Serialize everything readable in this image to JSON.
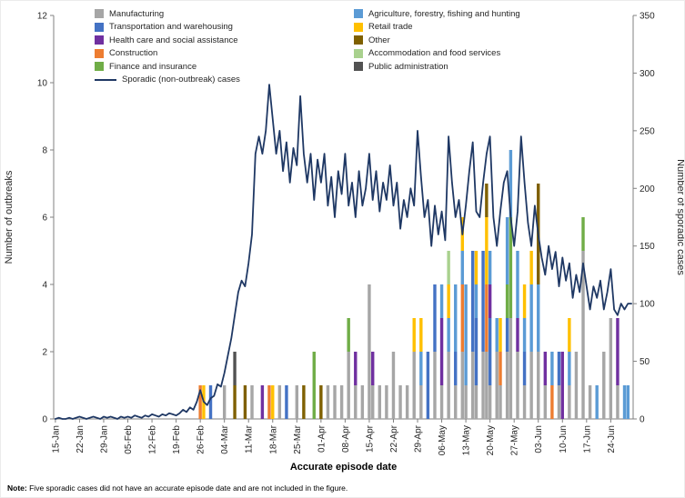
{
  "note": {
    "label": "Note:",
    "text": "Five sporadic cases did not have an accurate episode date and are not included in the figure."
  },
  "chart_data": {
    "type": "combo-stacked-bar-line",
    "title": "",
    "xlabel": "Accurate episode date",
    "ylabel_left": "Number of outbreaks",
    "ylabel_right": "Number of sporadic cases",
    "ylim_left": [
      0,
      12
    ],
    "ylim_right": [
      0,
      350
    ],
    "yticks_left": [
      0,
      2,
      4,
      6,
      8,
      10,
      12
    ],
    "yticks_right": [
      0,
      50,
      100,
      150,
      200,
      250,
      300,
      350
    ],
    "grid": false,
    "legend_position": "top",
    "x_start": "15-Jan",
    "n_days": 168,
    "xtick_interval_days": 7,
    "xtick_labels": [
      "15-Jan",
      "22-Jan",
      "29-Jan",
      "05-Feb",
      "12-Feb",
      "19-Feb",
      "26-Feb",
      "04-Mar",
      "11-Mar",
      "18-Mar",
      "25-Mar",
      "01-Apr",
      "08-Apr",
      "15-Apr",
      "22-Apr",
      "29-Apr",
      "06-May",
      "13-May",
      "20-May",
      "27-May",
      "03-Jun",
      "10-Jun",
      "17-Jun",
      "24-Jun"
    ],
    "sectors": [
      {
        "name": "Manufacturing",
        "color": "#a6a6a6"
      },
      {
        "name": "Transportation and warehousing",
        "color": "#4472c4"
      },
      {
        "name": "Health care and social assistance",
        "color": "#7030a0"
      },
      {
        "name": "Construction",
        "color": "#ed7d31"
      },
      {
        "name": "Finance and insurance",
        "color": "#70ad47"
      },
      {
        "name": "Agriculture, forestry, fishing and hunting",
        "color": "#5b9bd5"
      },
      {
        "name": "Retail trade",
        "color": "#ffc000"
      },
      {
        "name": "Other",
        "color": "#7f6000"
      },
      {
        "name": "Accommodation and food services",
        "color": "#a9d18e"
      },
      {
        "name": "Public administration",
        "color": "#525252"
      }
    ],
    "line": {
      "name": "Sporadic (non-outbreak) cases",
      "color": "#1f3864",
      "values": [
        0,
        1,
        0,
        0,
        1,
        0,
        1,
        2,
        1,
        0,
        1,
        2,
        1,
        0,
        2,
        1,
        2,
        1,
        0,
        2,
        1,
        2,
        1,
        3,
        2,
        1,
        3,
        2,
        4,
        3,
        2,
        4,
        3,
        5,
        4,
        3,
        5,
        8,
        6,
        10,
        8,
        15,
        25,
        15,
        12,
        18,
        20,
        30,
        28,
        40,
        55,
        70,
        90,
        110,
        120,
        115,
        135,
        160,
        230,
        245,
        230,
        250,
        290,
        260,
        230,
        250,
        215,
        240,
        205,
        235,
        220,
        280,
        230,
        205,
        230,
        190,
        225,
        205,
        230,
        185,
        210,
        175,
        215,
        195,
        230,
        185,
        205,
        175,
        215,
        185,
        200,
        230,
        190,
        215,
        180,
        205,
        190,
        220,
        185,
        205,
        165,
        190,
        175,
        200,
        185,
        250,
        210,
        175,
        190,
        150,
        185,
        160,
        180,
        155,
        245,
        205,
        175,
        190,
        160,
        185,
        215,
        240,
        180,
        175,
        205,
        230,
        245,
        175,
        150,
        180,
        205,
        215,
        175,
        150,
        180,
        245,
        205,
        170,
        150,
        185,
        160,
        140,
        125,
        150,
        130,
        145,
        115,
        140,
        120,
        135,
        105,
        125,
        110,
        135,
        115,
        95,
        115,
        105,
        120,
        95,
        110,
        130,
        95,
        90,
        100,
        95,
        100,
        100
      ]
    },
    "bars": [
      {
        "day": 42,
        "stack": {
          "Construction": 1
        }
      },
      {
        "day": 43,
        "stack": {
          "Retail trade": 1
        }
      },
      {
        "day": 45,
        "stack": {
          "Transportation and warehousing": 1
        }
      },
      {
        "day": 49,
        "stack": {
          "Manufacturing": 1
        }
      },
      {
        "day": 52,
        "stack": {
          "Other": 1,
          "Public administration": 1
        }
      },
      {
        "day": 55,
        "stack": {
          "Other": 1
        }
      },
      {
        "day": 57,
        "stack": {
          "Manufacturing": 1
        }
      },
      {
        "day": 60,
        "stack": {
          "Health care and social assistance": 1
        }
      },
      {
        "day": 62,
        "stack": {
          "Construction": 1
        }
      },
      {
        "day": 63,
        "stack": {
          "Retail trade": 1
        }
      },
      {
        "day": 65,
        "stack": {
          "Manufacturing": 1
        }
      },
      {
        "day": 67,
        "stack": {
          "Transportation and warehousing": 1
        }
      },
      {
        "day": 70,
        "stack": {
          "Manufacturing": 1
        }
      },
      {
        "day": 72,
        "stack": {
          "Other": 1
        }
      },
      {
        "day": 75,
        "stack": {
          "Finance and insurance": 2
        }
      },
      {
        "day": 77,
        "stack": {
          "Other": 1
        }
      },
      {
        "day": 79,
        "stack": {
          "Manufacturing": 1
        }
      },
      {
        "day": 81,
        "stack": {
          "Manufacturing": 1
        }
      },
      {
        "day": 83,
        "stack": {
          "Manufacturing": 1
        }
      },
      {
        "day": 85,
        "stack": {
          "Manufacturing": 2,
          "Finance and insurance": 1
        }
      },
      {
        "day": 87,
        "stack": {
          "Manufacturing": 1,
          "Health care and social assistance": 1
        }
      },
      {
        "day": 89,
        "stack": {
          "Manufacturing": 1
        }
      },
      {
        "day": 91,
        "stack": {
          "Manufacturing": 4
        }
      },
      {
        "day": 92,
        "stack": {
          "Manufacturing": 1,
          "Health care and social assistance": 1
        }
      },
      {
        "day": 94,
        "stack": {
          "Manufacturing": 1
        }
      },
      {
        "day": 96,
        "stack": {
          "Manufacturing": 1
        }
      },
      {
        "day": 98,
        "stack": {
          "Manufacturing": 2
        }
      },
      {
        "day": 100,
        "stack": {
          "Manufacturing": 1
        }
      },
      {
        "day": 102,
        "stack": {
          "Manufacturing": 1
        }
      },
      {
        "day": 104,
        "stack": {
          "Manufacturing": 2,
          "Retail trade": 1
        }
      },
      {
        "day": 106,
        "stack": {
          "Manufacturing": 1,
          "Agriculture, forestry, fishing and hunting": 1,
          "Retail trade": 1
        }
      },
      {
        "day": 108,
        "stack": {
          "Transportation and warehousing": 2
        }
      },
      {
        "day": 110,
        "stack": {
          "Manufacturing": 2,
          "Transportation and warehousing": 2
        }
      },
      {
        "day": 112,
        "stack": {
          "Manufacturing": 1,
          "Health care and social assistance": 2,
          "Agriculture, forestry, fishing and hunting": 1
        }
      },
      {
        "day": 114,
        "stack": {
          "Manufacturing": 2,
          "Agriculture, forestry, fishing and hunting": 1,
          "Retail trade": 1,
          "Accommodation and food services": 1
        }
      },
      {
        "day": 116,
        "stack": {
          "Manufacturing": 1,
          "Transportation and warehousing": 1,
          "Agriculture, forestry, fishing and hunting": 2
        }
      },
      {
        "day": 118,
        "stack": {
          "Manufacturing": 2,
          "Construction": 2,
          "Agriculture, forestry, fishing and hunting": 1,
          "Retail trade": 1
        }
      },
      {
        "day": 119,
        "stack": {
          "Manufacturing": 1,
          "Agriculture, forestry, fishing and hunting": 3
        }
      },
      {
        "day": 121,
        "stack": {
          "Manufacturing": 2,
          "Transportation and warehousing": 3
        }
      },
      {
        "day": 122,
        "stack": {
          "Manufacturing": 1,
          "Transportation and warehousing": 2,
          "Agriculture, forestry, fishing and hunting": 1,
          "Retail trade": 1
        }
      },
      {
        "day": 124,
        "stack": {
          "Manufacturing": 2,
          "Transportation and warehousing": 3
        }
      },
      {
        "day": 125,
        "stack": {
          "Manufacturing": 2,
          "Construction": 2,
          "Retail trade": 2,
          "Other": 1
        }
      },
      {
        "day": 126,
        "stack": {
          "Manufacturing": 1,
          "Transportation and warehousing": 2,
          "Health care and social assistance": 1,
          "Agriculture, forestry, fishing and hunting": 1
        }
      },
      {
        "day": 128,
        "stack": {
          "Manufacturing": 2,
          "Agriculture, forestry, fishing and hunting": 1
        }
      },
      {
        "day": 129,
        "stack": {
          "Manufacturing": 1,
          "Construction": 1,
          "Retail trade": 1
        }
      },
      {
        "day": 131,
        "stack": {
          "Manufacturing": 2,
          "Transportation and warehousing": 1,
          "Finance and insurance": 1,
          "Agriculture, forestry, fishing and hunting": 2
        }
      },
      {
        "day": 132,
        "stack": {
          "Manufacturing": 3,
          "Finance and insurance": 3,
          "Agriculture, forestry, fishing and hunting": 2
        }
      },
      {
        "day": 134,
        "stack": {
          "Manufacturing": 2,
          "Health care and social assistance": 1,
          "Agriculture, forestry, fishing and hunting": 2
        }
      },
      {
        "day": 136,
        "stack": {
          "Manufacturing": 1,
          "Transportation and warehousing": 1,
          "Agriculture, forestry, fishing and hunting": 1,
          "Retail trade": 1
        }
      },
      {
        "day": 138,
        "stack": {
          "Manufacturing": 2,
          "Agriculture, forestry, fishing and hunting": 2,
          "Retail trade": 1
        }
      },
      {
        "day": 140,
        "stack": {
          "Manufacturing": 2,
          "Agriculture, forestry, fishing and hunting": 2,
          "Other": 3
        }
      },
      {
        "day": 142,
        "stack": {
          "Manufacturing": 1,
          "Health care and social assistance": 1
        }
      },
      {
        "day": 144,
        "stack": {
          "Construction": 1,
          "Agriculture, forestry, fishing and hunting": 1
        }
      },
      {
        "day": 146,
        "stack": {
          "Manufacturing": 1,
          "Transportation and warehousing": 1
        }
      },
      {
        "day": 147,
        "stack": {
          "Health care and social assistance": 2
        }
      },
      {
        "day": 149,
        "stack": {
          "Manufacturing": 1,
          "Agriculture, forestry, fishing and hunting": 1,
          "Retail trade": 1
        }
      },
      {
        "day": 151,
        "stack": {
          "Manufacturing": 2
        }
      },
      {
        "day": 153,
        "stack": {
          "Manufacturing": 5,
          "Finance and insurance": 1
        }
      },
      {
        "day": 155,
        "stack": {
          "Manufacturing": 1
        }
      },
      {
        "day": 157,
        "stack": {
          "Agriculture, forestry, fishing and hunting": 1
        }
      },
      {
        "day": 159,
        "stack": {
          "Manufacturing": 2
        }
      },
      {
        "day": 161,
        "stack": {
          "Manufacturing": 3
        }
      },
      {
        "day": 163,
        "stack": {
          "Manufacturing": 1,
          "Health care and social assistance": 2
        }
      },
      {
        "day": 165,
        "stack": {
          "Agriculture, forestry, fishing and hunting": 1
        }
      },
      {
        "day": 166,
        "stack": {
          "Agriculture, forestry, fishing and hunting": 1
        }
      }
    ]
  }
}
